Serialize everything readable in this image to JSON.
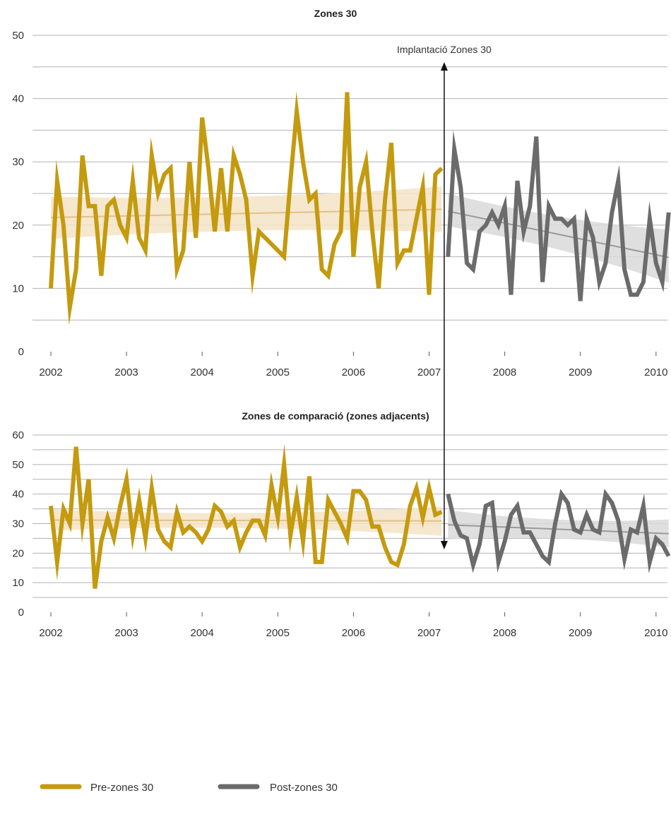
{
  "chart_data": [
    {
      "type": "line",
      "title": "Zones 30",
      "xlabel": "",
      "ylabel": "",
      "ylim": [
        0,
        50
      ],
      "yticks": [
        0,
        10,
        20,
        30,
        40,
        50
      ],
      "xticks": [
        2002,
        2003,
        2004,
        2005,
        2006,
        2007,
        2008,
        2009,
        2010
      ],
      "xlim": [
        2001.94,
        2010.22
      ],
      "grid": true,
      "series": [
        {
          "name": "Pre-zones 30",
          "color": "#c49a0e",
          "x": [
            2002.0,
            2002.083,
            2002.167,
            2002.25,
            2002.333,
            2002.417,
            2002.5,
            2002.583,
            2002.667,
            2002.75,
            2002.833,
            2002.917,
            2003.0,
            2003.083,
            2003.167,
            2003.25,
            2003.333,
            2003.417,
            2003.5,
            2003.583,
            2003.667,
            2003.75,
            2003.833,
            2003.917,
            2004.0,
            2004.083,
            2004.167,
            2004.25,
            2004.333,
            2004.417,
            2004.5,
            2004.583,
            2004.667,
            2004.75,
            2004.833,
            2004.917,
            2005.0,
            2005.083,
            2005.167,
            2005.25,
            2005.333,
            2005.417,
            2005.5,
            2005.583,
            2005.667,
            2005.75,
            2005.833,
            2005.917,
            2006.0,
            2006.083,
            2006.167,
            2006.25,
            2006.333,
            2006.417,
            2006.5,
            2006.583,
            2006.667,
            2006.75,
            2006.833,
            2006.917,
            2007.0,
            2007.083,
            2007.167
          ],
          "values": [
            10,
            27,
            20,
            7,
            13,
            31,
            23,
            23,
            12,
            23,
            24,
            20,
            18,
            27,
            18,
            16,
            31,
            25,
            28,
            29,
            13,
            16,
            30,
            18,
            37,
            29,
            19,
            29,
            19,
            31,
            28,
            24,
            12,
            19,
            18,
            17,
            16,
            15,
            27,
            38,
            30,
            24,
            25,
            13,
            12,
            17,
            19,
            41,
            15,
            26,
            30,
            19,
            10,
            24,
            33,
            14,
            16,
            16,
            21,
            26,
            9,
            28,
            29
          ]
        },
        {
          "name": "Post-zones 30",
          "color": "#6b6b6b",
          "x": [
            2007.25,
            2007.333,
            2007.417,
            2007.5,
            2007.583,
            2007.667,
            2007.75,
            2007.833,
            2007.917,
            2008.0,
            2008.083,
            2008.167,
            2008.25,
            2008.333,
            2008.417,
            2008.5,
            2008.583,
            2008.667,
            2008.75,
            2008.833,
            2008.917,
            2009.0,
            2009.083,
            2009.167,
            2009.25,
            2009.333,
            2009.417,
            2009.5,
            2009.583,
            2009.667,
            2009.75,
            2009.833,
            2009.917,
            2010.0,
            2010.083,
            2010.167
          ],
          "values": [
            15,
            32,
            26,
            14,
            13,
            19,
            20,
            22,
            20,
            23,
            9,
            27,
            19,
            23,
            34,
            11,
            23,
            21,
            21,
            20,
            21,
            8,
            21,
            18,
            11,
            14,
            22,
            27,
            13,
            9,
            9,
            11,
            21,
            14,
            11,
            22
          ]
        }
      ],
      "trends": [
        {
          "series": "Pre-zones 30",
          "x": [
            2002.0,
            2007.167
          ],
          "values": [
            21.2,
            22.5
          ],
          "ci_low": [
            17.8,
            18.9
          ],
          "ci_high": [
            24.5,
            26.1
          ]
        },
        {
          "series": "Post-zones 30",
          "x": [
            2007.25,
            2010.167
          ],
          "values": [
            22.2,
            14.9
          ],
          "ci_low": [
            19.8,
            10.9
          ],
          "ci_high": [
            25.0,
            19.3
          ]
        }
      ],
      "annotation": {
        "text": "Implantació Zones 30",
        "x": 2007.2
      }
    },
    {
      "type": "line",
      "title": "Zones de comparació (zones adjacents)",
      "xlabel": "",
      "ylabel": "",
      "ylim": [
        0,
        60
      ],
      "yticks": [
        0,
        10,
        20,
        30,
        40,
        50,
        60
      ],
      "xticks": [
        2002,
        2003,
        2004,
        2005,
        2006,
        2007,
        2008,
        2009,
        2010
      ],
      "xlim": [
        2001.94,
        2010.22
      ],
      "grid": true,
      "series": [
        {
          "name": "Pre-zones 30",
          "color": "#c49a0e",
          "x": [
            2002.0,
            2002.083,
            2002.167,
            2002.25,
            2002.333,
            2002.417,
            2002.5,
            2002.583,
            2002.667,
            2002.75,
            2002.833,
            2002.917,
            2003.0,
            2003.083,
            2003.167,
            2003.25,
            2003.333,
            2003.417,
            2003.5,
            2003.583,
            2003.667,
            2003.75,
            2003.833,
            2003.917,
            2004.0,
            2004.083,
            2004.167,
            2004.25,
            2004.333,
            2004.417,
            2004.5,
            2004.583,
            2004.667,
            2004.75,
            2004.833,
            2004.917,
            2005.0,
            2005.083,
            2005.167,
            2005.25,
            2005.333,
            2005.417,
            2005.5,
            2005.583,
            2005.667,
            2005.75,
            2005.833,
            2005.917,
            2006.0,
            2006.083,
            2006.167,
            2006.25,
            2006.333,
            2006.417,
            2006.5,
            2006.583,
            2006.667,
            2006.75,
            2006.833,
            2006.917,
            2007.0,
            2007.083,
            2007.167
          ],
          "values": [
            36,
            17,
            35,
            30,
            56,
            30,
            45,
            8,
            24,
            32,
            25,
            36,
            45,
            26,
            38,
            25,
            42,
            28,
            24,
            22,
            34,
            27,
            29,
            27,
            24,
            28,
            36,
            34,
            29,
            31,
            22,
            27,
            31,
            31,
            26,
            43,
            32,
            50,
            26,
            39,
            24,
            46,
            17,
            17,
            38,
            34,
            30,
            25,
            41,
            41,
            38,
            29,
            29,
            22,
            17,
            16,
            23,
            36,
            42,
            32,
            42,
            33,
            34
          ]
        },
        {
          "name": "Post-zones 30",
          "color": "#6b6b6b",
          "x": [
            2007.25,
            2007.333,
            2007.417,
            2007.5,
            2007.583,
            2007.667,
            2007.75,
            2007.833,
            2007.917,
            2008.0,
            2008.083,
            2008.167,
            2008.25,
            2008.333,
            2008.417,
            2008.5,
            2008.583,
            2008.667,
            2008.75,
            2008.833,
            2008.917,
            2009.0,
            2009.083,
            2009.167,
            2009.25,
            2009.333,
            2009.417,
            2009.5,
            2009.583,
            2009.667,
            2009.75,
            2009.833,
            2009.917,
            2010.0,
            2010.083,
            2010.167
          ],
          "values": [
            40,
            31,
            26,
            25,
            16,
            23,
            36,
            37,
            17,
            24,
            33,
            36,
            27,
            27,
            23,
            19,
            17,
            30,
            40,
            37,
            28,
            27,
            33,
            28,
            27,
            40,
            37,
            31,
            18,
            28,
            27,
            36,
            17,
            25,
            23,
            19
          ]
        }
      ],
      "trends": [
        {
          "series": "Pre-zones 30",
          "x": [
            2002.0,
            2007.167
          ],
          "values": [
            31.2,
            30.9
          ],
          "ci_low": [
            27.7,
            25.9
          ],
          "ci_high": [
            34.8,
            35.7
          ]
        },
        {
          "series": "Post-zones 30",
          "x": [
            2007.25,
            2010.167
          ],
          "values": [
            29.6,
            26.6
          ],
          "ci_low": [
            24.6,
            21.9
          ],
          "ci_high": [
            34.6,
            31.4
          ]
        }
      ]
    }
  ],
  "legend": {
    "placement": "bottom-left",
    "items": [
      {
        "label": "Pre-zones 30",
        "color": "#c49a0e"
      },
      {
        "label": "Post-zones 30",
        "color": "#6b6b6b"
      }
    ]
  },
  "colors": {
    "pre_band": "#f5e3c7",
    "post_band": "#d9d9d9",
    "pre_trend": "#e2c184",
    "post_trend": "#9a9a9a"
  }
}
